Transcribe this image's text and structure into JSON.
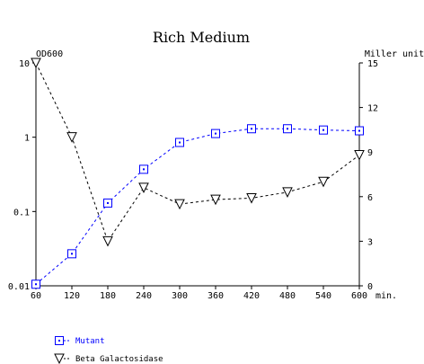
{
  "chart_data": {
    "type": "line",
    "title": "Rich Medium",
    "x": [
      60,
      120,
      180,
      240,
      300,
      360,
      420,
      480,
      540,
      600
    ],
    "x_unit": "min.",
    "xlim": [
      60,
      600
    ],
    "left_axis": {
      "label": "OD600",
      "scale": "log",
      "ylim": [
        0.01,
        10
      ],
      "ticks": [
        0.01,
        0.1,
        1,
        10
      ],
      "tick_labels": [
        "0.01",
        "0.1",
        "1",
        "10"
      ]
    },
    "right_axis": {
      "label": "Miller units",
      "scale": "linear",
      "ylim": [
        0,
        15
      ],
      "ticks": [
        0,
        3,
        6,
        9,
        12,
        15
      ],
      "tick_labels": [
        "0",
        "3",
        "6",
        "9",
        "12",
        "15"
      ]
    },
    "series": [
      {
        "name": "Mutant",
        "axis": "left",
        "marker": "square",
        "color": "#0000ff",
        "line_style": "dashed",
        "values": [
          0.0105,
          0.027,
          0.13,
          0.37,
          0.85,
          1.12,
          1.3,
          1.3,
          1.25,
          1.22
        ]
      },
      {
        "name": "Beta Galactosidase",
        "axis": "right",
        "marker": "triangle-down",
        "color": "#000000",
        "line_style": "dashed",
        "values": [
          15.0,
          10.0,
          3.0,
          6.6,
          5.5,
          5.8,
          5.9,
          6.3,
          7.0,
          8.8
        ]
      }
    ],
    "legend_position": "bottom-left",
    "grid": false
  }
}
